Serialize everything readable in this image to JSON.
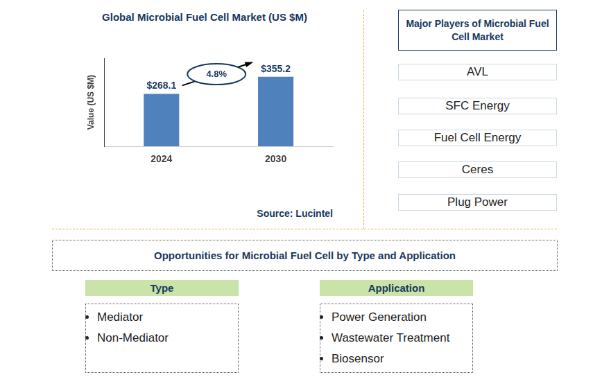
{
  "chart_data": {
    "type": "bar",
    "title": "Global Microbial Fuel Cell Market (US $M)",
    "y_label": "Value (US $M)",
    "categories": [
      "2024",
      "2030"
    ],
    "values": [
      268.1,
      355.2
    ],
    "value_labels": [
      "$268.1",
      "$355.2"
    ],
    "data_labels": true,
    "color": "#4f81bd",
    "ylim": [
      0,
      450
    ],
    "tick_labels": "x",
    "grid": false,
    "annotation": "4.8%",
    "source": "Source: Lucintel"
  },
  "players": {
    "title": "Major Players of Microbial Fuel Cell Market",
    "items": [
      "AVL",
      "SFC Energy",
      "Fuel Cell Energy",
      "Ceres",
      "Plug Power"
    ]
  },
  "opportunities": {
    "title": "Opportunities for Microbial Fuel Cell by Type and Application",
    "groups": [
      {
        "title": "Type",
        "items": [
          "Mediator",
          "Non-Mediator"
        ]
      },
      {
        "title": "Application",
        "items": [
          "Power Generation",
          "Wastewater Treatment",
          "Biosensor"
        ]
      }
    ]
  }
}
